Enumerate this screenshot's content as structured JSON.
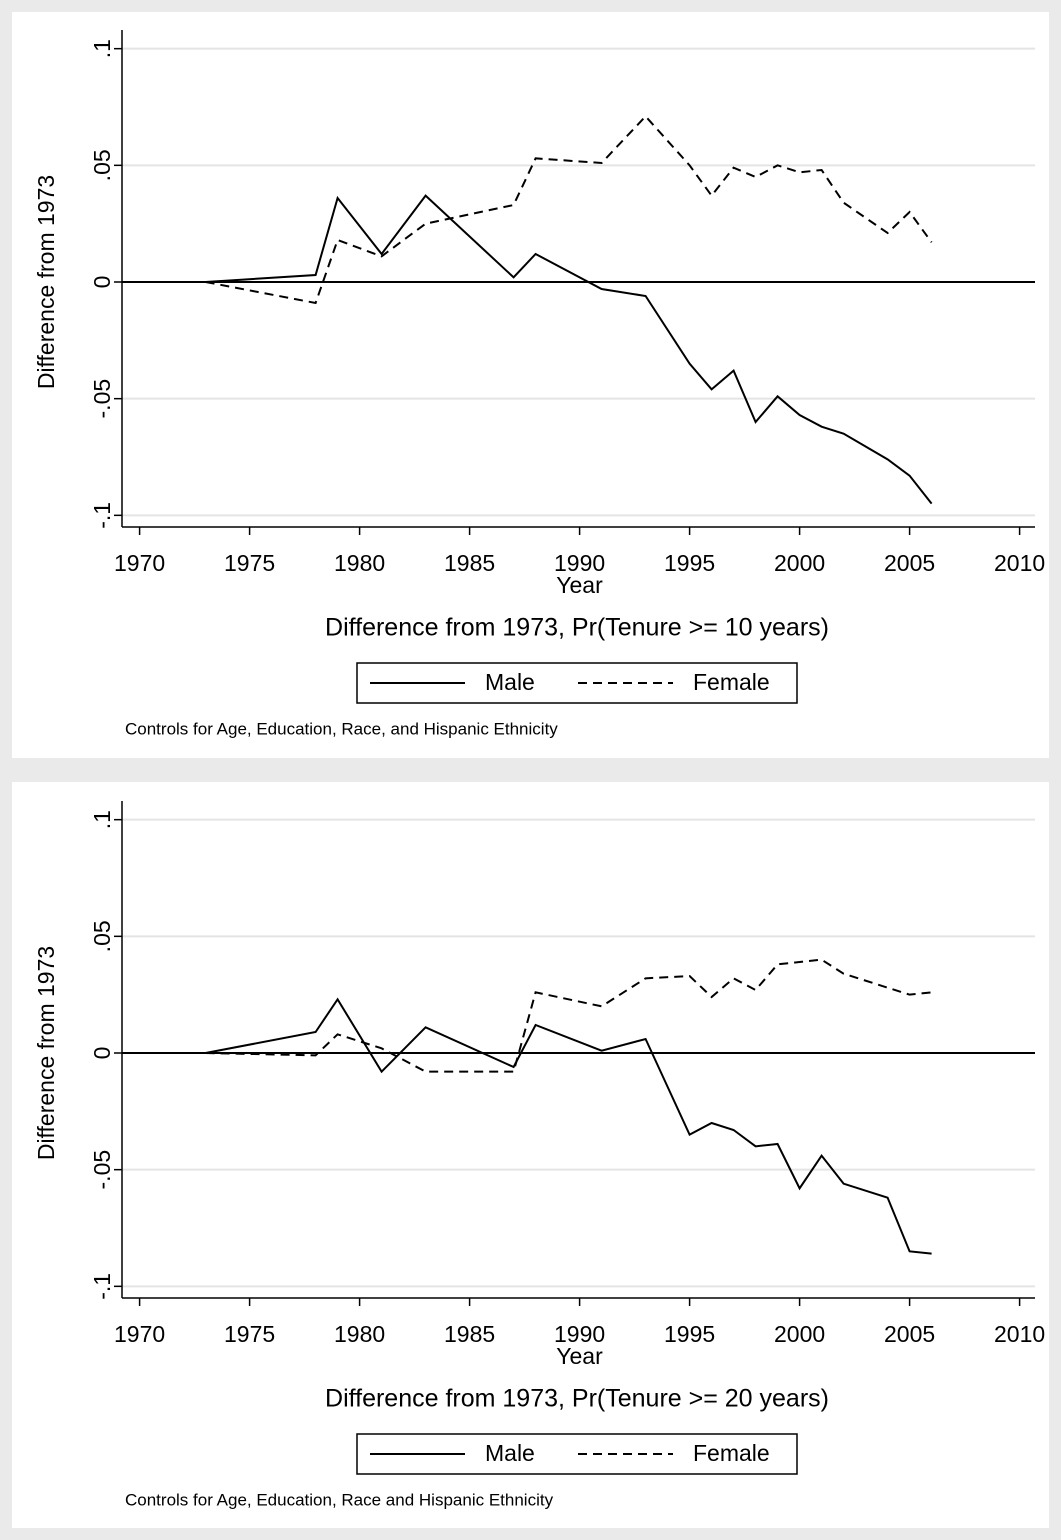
{
  "chart_data": [
    {
      "type": "line",
      "title": "Difference from 1973, Pr(Tenure >= 10 years)",
      "x_label": "Year",
      "y_label": "Difference from 1973",
      "note": "Controls for Age, Education, Race, and Hispanic Ethnicity",
      "x": [
        1973,
        1978,
        1979,
        1981,
        1983,
        1987,
        1988,
        1991,
        1993,
        1995,
        1996,
        1997,
        1998,
        1999,
        2000,
        2001,
        2002,
        2004,
        2005,
        2006
      ],
      "series": [
        {
          "name": "Male",
          "color": "#000000",
          "dash": "solid",
          "values": [
            0,
            0.003,
            0.036,
            0.012,
            0.037,
            0.002,
            0.012,
            -0.003,
            -0.006,
            -0.035,
            -0.046,
            -0.038,
            -0.06,
            -0.049,
            -0.057,
            -0.062,
            -0.065,
            -0.076,
            -0.083,
            -0.095
          ]
        },
        {
          "name": "Female",
          "color": "#000000",
          "dash": "dashed",
          "values": [
            0,
            -0.009,
            0.018,
            0.011,
            0.025,
            0.033,
            0.053,
            0.051,
            0.071,
            0.05,
            0.037,
            0.049,
            0.045,
            0.05,
            0.047,
            0.048,
            0.034,
            0.021,
            0.03,
            0.017
          ]
        }
      ],
      "xlim": [
        1969.2,
        2010.7
      ],
      "xticks": [
        1970,
        1975,
        1980,
        1985,
        1990,
        1995,
        2000,
        2005,
        2010
      ],
      "ylim": [
        -0.105,
        0.108
      ],
      "yticks": [
        {
          "value": -0.1,
          "label": "-.1"
        },
        {
          "value": -0.05,
          "label": "-.05"
        },
        0,
        {
          "value": 0.05,
          "label": ".05"
        },
        {
          "value": 0.1,
          "label": ".1"
        }
      ],
      "grid": true,
      "hline": 0,
      "legend": "bottom"
    },
    {
      "type": "line",
      "title": "Difference from 1973, Pr(Tenure >= 20 years)",
      "x_label": "Year",
      "y_label": "Difference from 1973",
      "note": "Controls for Age, Education, Race and Hispanic Ethnicity",
      "x": [
        1973,
        1978,
        1979,
        1981,
        1983,
        1987,
        1988,
        1991,
        1993,
        1995,
        1996,
        1997,
        1998,
        1999,
        2000,
        2001,
        2002,
        2004,
        2005,
        2006
      ],
      "series": [
        {
          "name": "Male",
          "color": "#000000",
          "dash": "solid",
          "values": [
            0,
            0.009,
            0.023,
            -0.008,
            0.011,
            -0.006,
            0.012,
            0.001,
            0.006,
            -0.035,
            -0.03,
            -0.033,
            -0.04,
            -0.039,
            -0.058,
            -0.044,
            -0.056,
            -0.062,
            -0.085,
            -0.086
          ]
        },
        {
          "name": "Female",
          "color": "#000000",
          "dash": "dashed",
          "values": [
            0,
            -0.001,
            0.008,
            0.002,
            -0.008,
            -0.008,
            0.026,
            0.02,
            0.032,
            0.033,
            0.024,
            0.032,
            0.027,
            0.038,
            0.039,
            0.04,
            0.034,
            0.028,
            0.025,
            0.026
          ]
        }
      ],
      "xlim": [
        1969.2,
        2010.7
      ],
      "xticks": [
        1970,
        1975,
        1980,
        1985,
        1990,
        1995,
        2000,
        2005,
        2010
      ],
      "ylim": [
        -0.105,
        0.108
      ],
      "yticks": [
        {
          "value": -0.1,
          "label": "-.1"
        },
        {
          "value": -0.05,
          "label": "-.05"
        },
        0,
        {
          "value": 0.05,
          "label": ".05"
        },
        {
          "value": 0.1,
          "label": ".1"
        }
      ],
      "grid": true,
      "hline": 0,
      "legend": "bottom"
    }
  ]
}
